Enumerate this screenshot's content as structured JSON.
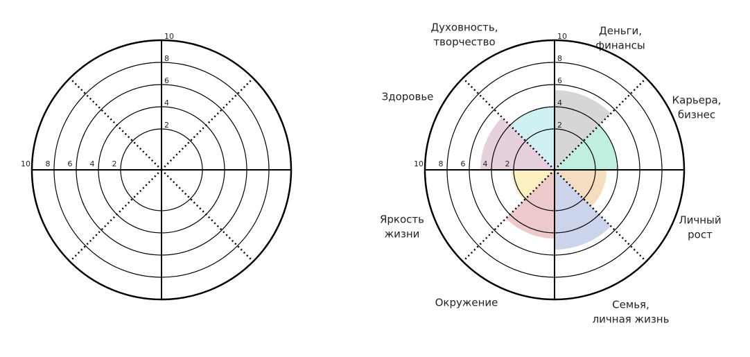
{
  "chart_data": [
    {
      "type": "polar",
      "rlim": [
        0,
        10
      ],
      "rticks": [
        2,
        4,
        6,
        8,
        10
      ]
    },
    {
      "type": "polar",
      "rlim": [
        0,
        10
      ],
      "rticks": [
        2,
        4,
        6,
        8,
        10
      ],
      "categories": [
        [
          "Деньги,",
          "финансы"
        ],
        [
          "Карьера,",
          "бизнес"
        ],
        [
          "Личный",
          "рост"
        ],
        [
          "Семья,",
          "личная жизнь"
        ],
        [
          "Окружение"
        ],
        [
          "Яркость",
          "жизни"
        ],
        [
          "Здоровье"
        ],
        [
          "Духовность,",
          "творчество"
        ]
      ],
      "values": [
        5.5,
        4,
        3,
        5.5,
        4.5,
        2.2,
        5,
        4
      ],
      "colors": [
        "#cfcfcf",
        "#b6ecd8",
        "#f2d8b4",
        "#c3cce8",
        "#ebc0c3",
        "#fbedb8",
        "#e0c8d8",
        "#c8eef2"
      ]
    }
  ]
}
